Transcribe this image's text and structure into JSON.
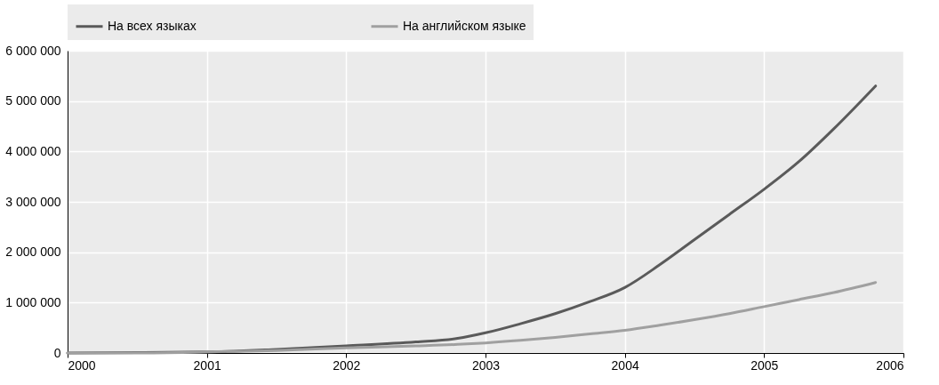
{
  "chart_data": {
    "type": "line",
    "x": [
      2000,
      2000.5,
      2001,
      2001.5,
      2002,
      2002.5,
      2002.8,
      2003,
      2003.25,
      2003.5,
      2003.75,
      2004,
      2004.25,
      2004.5,
      2004.75,
      2005,
      2005.25,
      2005.5,
      2005.8
    ],
    "series": [
      {
        "name": "На всех языках",
        "color": "#5a5a5a",
        "values": [
          0,
          10000,
          20000,
          70000,
          140000,
          220000,
          290000,
          400000,
          580000,
          780000,
          1020000,
          1300000,
          1750000,
          2250000,
          2750000,
          3250000,
          3800000,
          4450000,
          5300000
        ]
      },
      {
        "name": "На английском языке",
        "color": "#a0a0a0",
        "values": [
          0,
          0,
          20000,
          50000,
          100000,
          140000,
          170000,
          200000,
          250000,
          310000,
          380000,
          450000,
          550000,
          660000,
          780000,
          920000,
          1060000,
          1200000,
          1400000
        ]
      }
    ],
    "xlim": [
      2000,
      2006
    ],
    "xticks": [
      2000,
      2001,
      2002,
      2003,
      2004,
      2005,
      2006
    ],
    "ylim": [
      0,
      6000000
    ],
    "yticks": [
      {
        "value": 0,
        "label": "0"
      },
      {
        "value": 1000000,
        "label": "1 000 000"
      },
      {
        "value": 2000000,
        "label": "2 000 000"
      },
      {
        "value": 3000000,
        "label": "3 000 000"
      },
      {
        "value": 4000000,
        "label": "4 000 000"
      },
      {
        "value": 5000000,
        "label": "5 000 000"
      },
      {
        "value": 6000000,
        "label": "6 000 000"
      }
    ],
    "grid": true,
    "legend": "top",
    "marker": "none",
    "line_style": "solid"
  }
}
